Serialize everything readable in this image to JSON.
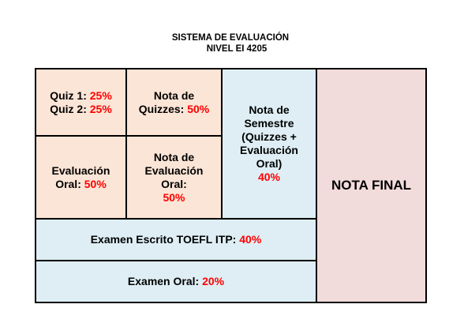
{
  "header": {
    "title": "SISTEMA DE EVALUACIÓN",
    "subtitle": "NIVEL EI 4205"
  },
  "cells": {
    "quiz1": {
      "label": "Quiz 1:",
      "value": "25%"
    },
    "quiz2": {
      "label": "Quiz 2:",
      "value": "25%"
    },
    "nota_quizzes": {
      "label_line1": "Nota de",
      "label_line2": "Quizzes:",
      "value": "50%"
    },
    "nota_semestre": {
      "lines": [
        "Nota de",
        "Semestre",
        "(Quizzes +",
        "Evaluación",
        "Oral)"
      ],
      "value": "40%"
    },
    "nota_final": {
      "label": "NOTA FINAL"
    },
    "evaluacion_oral": {
      "label_line1": "Evaluación",
      "label_line2": "Oral:",
      "value": "50%"
    },
    "nota_evaluacion_oral": {
      "lines": [
        "Nota de",
        "Evaluación",
        "Oral:"
      ],
      "value": "50%"
    },
    "examen_escrito": {
      "label": "Examen Escrito TOEFL ITP:",
      "value": "40%"
    },
    "examen_oral": {
      "label": "Examen Oral:",
      "value": "20%"
    }
  },
  "colors": {
    "peach": "#fbe5d6",
    "blue": "#deeef4",
    "pink": "#f2dcdb",
    "accent_red": "#ff0000",
    "border": "#000000"
  }
}
